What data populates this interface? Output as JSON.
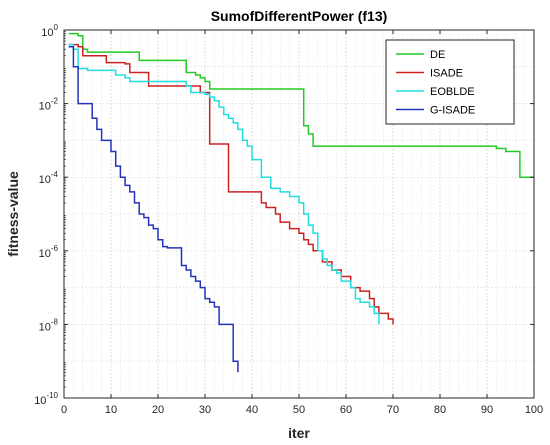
{
  "chart_data": {
    "type": "line",
    "title": "SumofDifferentPower (f13)",
    "xlabel": "iter",
    "ylabel": "fitness-value",
    "x_ticks": [
      0,
      10,
      20,
      30,
      40,
      50,
      60,
      70,
      80,
      90,
      100
    ],
    "y_scale": "log",
    "y_tick_exponents": [
      0,
      -2,
      -4,
      -6,
      -8,
      -10
    ],
    "y_tick_base": "10",
    "xlim": [
      0,
      100
    ],
    "ylim": [
      1e-10,
      1
    ],
    "grid": "dotted",
    "legend_position": "top-right",
    "series": [
      {
        "name": "DE",
        "color": "#22cc22",
        "points": [
          [
            1,
            0.8
          ],
          [
            2,
            0.8
          ],
          [
            3,
            0.7
          ],
          [
            4,
            0.3
          ],
          [
            5,
            0.25
          ],
          [
            6,
            0.25
          ],
          [
            10,
            0.25
          ],
          [
            15,
            0.25
          ],
          [
            16,
            0.15
          ],
          [
            20,
            0.15
          ],
          [
            25,
            0.15
          ],
          [
            26,
            0.07
          ],
          [
            27,
            0.07
          ],
          [
            28,
            0.06
          ],
          [
            29,
            0.05
          ],
          [
            30,
            0.04
          ],
          [
            31,
            0.025
          ],
          [
            35,
            0.025
          ],
          [
            40,
            0.025
          ],
          [
            45,
            0.025
          ],
          [
            50,
            0.025
          ],
          [
            51,
            0.0025
          ],
          [
            52,
            0.0015
          ],
          [
            53,
            0.0007
          ],
          [
            60,
            0.0007
          ],
          [
            70,
            0.0007
          ],
          [
            80,
            0.0007
          ],
          [
            90,
            0.0007
          ],
          [
            92,
            0.0006
          ],
          [
            94,
            0.0005
          ],
          [
            96,
            0.0005
          ],
          [
            97,
            0.0001
          ],
          [
            100,
            0.0001
          ]
        ]
      },
      {
        "name": "ISADE",
        "color": "#cc2222",
        "points": [
          [
            1,
            0.4
          ],
          [
            2,
            0.4
          ],
          [
            3,
            0.35
          ],
          [
            4,
            0.2
          ],
          [
            8,
            0.2
          ],
          [
            9,
            0.13
          ],
          [
            13,
            0.12
          ],
          [
            14,
            0.07
          ],
          [
            17,
            0.07
          ],
          [
            18,
            0.03
          ],
          [
            28,
            0.03
          ],
          [
            29,
            0.02
          ],
          [
            30,
            0.02
          ],
          [
            31,
            0.0008
          ],
          [
            34,
            0.0008
          ],
          [
            35,
            4e-05
          ],
          [
            40,
            4e-05
          ],
          [
            42,
            2e-05
          ],
          [
            43,
            1.5e-05
          ],
          [
            45,
            1e-05
          ],
          [
            46,
            6e-06
          ],
          [
            48,
            4e-06
          ],
          [
            50,
            3e-06
          ],
          [
            51,
            2e-06
          ],
          [
            52,
            1.5e-06
          ],
          [
            53,
            1e-06
          ],
          [
            55,
            5e-07
          ],
          [
            57,
            3e-07
          ],
          [
            59,
            2e-07
          ],
          [
            61,
            1e-07
          ],
          [
            63,
            8e-08
          ],
          [
            65,
            5e-08
          ],
          [
            66,
            3e-08
          ],
          [
            67,
            2e-08
          ],
          [
            69,
            1.4e-08
          ],
          [
            70,
            1e-08
          ]
        ]
      },
      {
        "name": "EOBLDE",
        "color": "#22dddd",
        "points": [
          [
            1,
            0.4
          ],
          [
            2,
            0.3
          ],
          [
            3,
            0.09
          ],
          [
            5,
            0.08
          ],
          [
            10,
            0.08
          ],
          [
            11,
            0.06
          ],
          [
            13,
            0.05
          ],
          [
            14,
            0.04
          ],
          [
            22,
            0.04
          ],
          [
            26,
            0.03
          ],
          [
            27,
            0.02
          ],
          [
            30,
            0.018
          ],
          [
            31,
            0.015
          ],
          [
            32,
            0.012
          ],
          [
            33,
            0.008
          ],
          [
            34,
            0.005
          ],
          [
            35,
            0.004
          ],
          [
            36,
            0.003
          ],
          [
            37,
            0.002
          ],
          [
            38,
            0.001
          ],
          [
            39,
            0.0007
          ],
          [
            40,
            0.0003
          ],
          [
            42,
            0.0001
          ],
          [
            44,
            5e-05
          ],
          [
            46,
            4e-05
          ],
          [
            48,
            3e-05
          ],
          [
            50,
            2e-05
          ],
          [
            51,
            1e-05
          ],
          [
            52,
            5e-06
          ],
          [
            53,
            3e-06
          ],
          [
            54,
            1e-06
          ],
          [
            55,
            6e-07
          ],
          [
            56,
            4e-07
          ],
          [
            57,
            3e-07
          ],
          [
            58,
            2.5e-07
          ],
          [
            59,
            1.5e-07
          ],
          [
            61,
            1e-07
          ],
          [
            62,
            5e-08
          ],
          [
            63,
            4e-08
          ],
          [
            65,
            3e-08
          ],
          [
            66,
            2e-08
          ],
          [
            67,
            1e-08
          ]
        ]
      },
      {
        "name": "G-ISADE",
        "color": "#2233bb",
        "points": [
          [
            1,
            0.35
          ],
          [
            2,
            0.1
          ],
          [
            3,
            0.01
          ],
          [
            5,
            0.01
          ],
          [
            6,
            0.004
          ],
          [
            7,
            0.002
          ],
          [
            8,
            0.001
          ],
          [
            9,
            0.001
          ],
          [
            10,
            0.0005
          ],
          [
            11,
            0.0002
          ],
          [
            12,
            0.0001
          ],
          [
            13,
            6e-05
          ],
          [
            14,
            4e-05
          ],
          [
            15,
            2e-05
          ],
          [
            16,
            1e-05
          ],
          [
            17,
            8e-06
          ],
          [
            18,
            5e-06
          ],
          [
            19,
            4e-06
          ],
          [
            20,
            2e-06
          ],
          [
            21,
            1.3e-06
          ],
          [
            22,
            1.2e-06
          ],
          [
            24,
            1.2e-06
          ],
          [
            25,
            4e-07
          ],
          [
            26,
            3e-07
          ],
          [
            27,
            2e-07
          ],
          [
            28,
            1.5e-07
          ],
          [
            29,
            1e-07
          ],
          [
            30,
            5e-08
          ],
          [
            31,
            4e-08
          ],
          [
            32,
            3e-08
          ],
          [
            33,
            1e-08
          ],
          [
            35,
            1e-08
          ],
          [
            36,
            1e-09
          ],
          [
            37,
            5e-10
          ]
        ]
      }
    ]
  }
}
